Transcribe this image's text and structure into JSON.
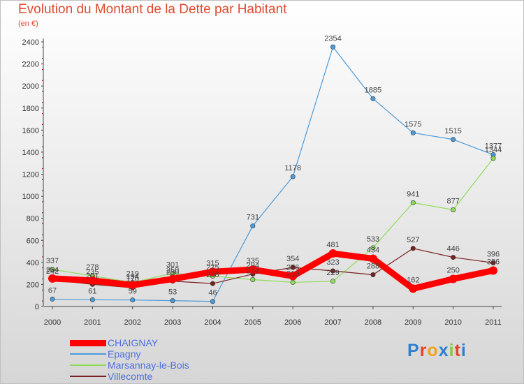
{
  "title": "Evolution du Montant de la Dette par Habitant",
  "subtitle": "(en €)",
  "logo": "Proxiti",
  "chart_data": {
    "type": "line",
    "x": [
      "2000",
      "2001",
      "2002",
      "2003",
      "2004",
      "2005",
      "2006",
      "2007",
      "2008",
      "2009",
      "2010",
      "2011"
    ],
    "ylim": [
      0,
      2400
    ],
    "yticks": [
      0,
      200,
      400,
      600,
      800,
      1000,
      1200,
      1400,
      1600,
      1800,
      2000,
      2200,
      2400
    ],
    "grid": false,
    "legend_position": "bottom-left",
    "series": [
      {
        "name": "CHAIGNAY",
        "color": "#ff0000",
        "values": [
          254,
          235,
          194,
          250,
          315,
          335,
          276,
          481,
          434,
          162,
          250,
          326
        ],
        "labels": [
          "254",
          "235",
          "194",
          "250",
          "315",
          "335",
          "276",
          "481",
          "434",
          "162",
          "250",
          "326"
        ]
      },
      {
        "name": "Epagny",
        "color": "#4d9bd9",
        "values": [
          67,
          61,
          59,
          53,
          46,
          731,
          1178,
          2354,
          1885,
          1575,
          1515,
          1377
        ],
        "labels": [
          "67",
          "61",
          "59",
          "53",
          "46",
          "731",
          "1178",
          "2354",
          "1885",
          "1575",
          "1515",
          "1377"
        ]
      },
      {
        "name": "Marsannay-le-Bois",
        "color": "#8fdc5a",
        "values": [
          337,
          278,
          219,
          301,
          275,
          244,
          219,
          229,
          533,
          941,
          877,
          1344
        ],
        "labels": [
          "337",
          "278",
          "219",
          "301",
          "275",
          "244",
          "219",
          "229",
          "533",
          "941",
          "877",
          "1344"
        ]
      },
      {
        "name": "Villecomte",
        "color": "#7a1f1f",
        "values": [
          242,
          201,
          170,
          230,
          208,
          294,
          354,
          323,
          288,
          527,
          446,
          396
        ],
        "labels": [
          "242",
          "201",
          "170",
          "230",
          "208",
          "294",
          "354",
          "323",
          "288",
          "527",
          "446",
          "396"
        ]
      }
    ]
  }
}
